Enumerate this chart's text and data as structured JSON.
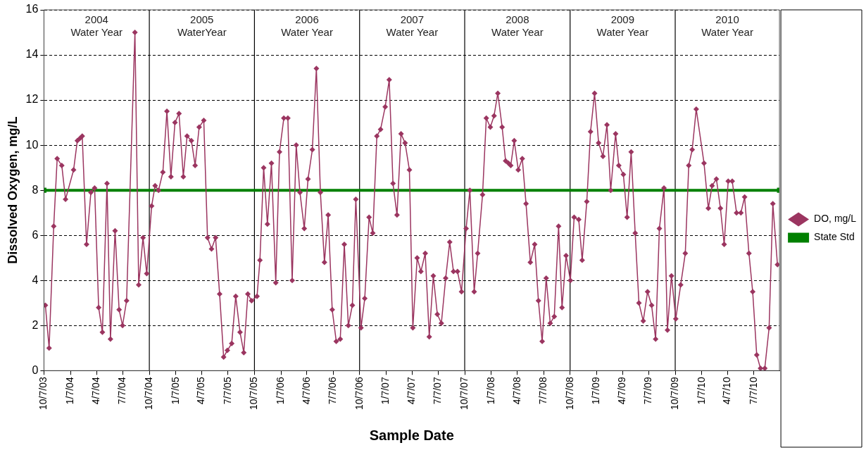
{
  "chart_data": {
    "type": "line",
    "xlabel": "Sample Date",
    "ylabel": "Dissolved Oxygen, mg/L",
    "xlim": [
      "2003-10-07",
      "2010-10-04"
    ],
    "ylim": [
      0,
      16
    ],
    "yticks": [
      0,
      2,
      4,
      6,
      8,
      10,
      12,
      14,
      16
    ],
    "xticks": [
      {
        "value": "2003-10-07",
        "label": "10/7/03"
      },
      {
        "value": "2004-01-07",
        "label": "1/7/04"
      },
      {
        "value": "2004-04-07",
        "label": "4/7/04"
      },
      {
        "value": "2004-07-07",
        "label": "7/7/04"
      },
      {
        "value": "2004-10-07",
        "label": "10/7/04"
      },
      {
        "value": "2005-01-07",
        "label": "1/7/05"
      },
      {
        "value": "2005-04-07",
        "label": "4/7/05"
      },
      {
        "value": "2005-07-07",
        "label": "7/7/05"
      },
      {
        "value": "2005-10-07",
        "label": "10/7/05"
      },
      {
        "value": "2006-01-07",
        "label": "1/7/06"
      },
      {
        "value": "2006-04-07",
        "label": "4/7/06"
      },
      {
        "value": "2006-07-07",
        "label": "7/7/06"
      },
      {
        "value": "2006-10-07",
        "label": "10/7/06"
      },
      {
        "value": "2007-01-07",
        "label": "1/7/07"
      },
      {
        "value": "2007-04-07",
        "label": "4/7/07"
      },
      {
        "value": "2007-07-07",
        "label": "7/7/07"
      },
      {
        "value": "2007-10-07",
        "label": "10/7/07"
      },
      {
        "value": "2008-01-07",
        "label": "1/7/08"
      },
      {
        "value": "2008-04-07",
        "label": "4/7/08"
      },
      {
        "value": "2008-07-07",
        "label": "7/7/08"
      },
      {
        "value": "2008-10-07",
        "label": "10/7/08"
      },
      {
        "value": "2009-01-07",
        "label": "1/7/09"
      },
      {
        "value": "2009-04-07",
        "label": "4/7/09"
      },
      {
        "value": "2009-07-07",
        "label": "7/7/09"
      },
      {
        "value": "2009-10-07",
        "label": "10/7/09"
      },
      {
        "value": "2010-01-07",
        "label": "1/7/10"
      },
      {
        "value": "2010-04-07",
        "label": "4/7/10"
      },
      {
        "value": "2010-07-07",
        "label": "7/7/10"
      }
    ],
    "grid": "y",
    "legend": "right",
    "line_style": "solid",
    "series": [
      {
        "name": "DO, mg/L",
        "color": "#9b3560",
        "marker": "diamond",
        "x": [
          "2003-10-12",
          "2003-10-25",
          "2003-11-10",
          "2003-11-22",
          "2003-12-08",
          "2003-12-21",
          "2004-01-18",
          "2004-01-31",
          "2004-02-09",
          "2004-02-17",
          "2004-03-03",
          "2004-03-18",
          "2004-03-31",
          "2004-04-14",
          "2004-04-27",
          "2004-05-13",
          "2004-05-25",
          "2004-06-10",
          "2004-06-24",
          "2004-07-06",
          "2004-07-20",
          "2004-08-18",
          "2004-08-31",
          "2004-09-15",
          "2004-09-28",
          "2004-10-15",
          "2004-10-27",
          "2004-11-08",
          "2004-11-23",
          "2004-12-07",
          "2004-12-21",
          "2005-01-04",
          "2005-01-18",
          "2005-02-02",
          "2005-02-15",
          "2005-03-02",
          "2005-03-15",
          "2005-03-29",
          "2005-04-14",
          "2005-04-27",
          "2005-05-11",
          "2005-05-25",
          "2005-06-08",
          "2005-06-22",
          "2005-07-05",
          "2005-07-20",
          "2005-08-03",
          "2005-08-18",
          "2005-08-31",
          "2005-09-14",
          "2005-09-27",
          "2005-10-16",
          "2005-10-26",
          "2005-11-08",
          "2005-11-21",
          "2005-12-05",
          "2005-12-20",
          "2006-01-02",
          "2006-01-17",
          "2006-01-31",
          "2006-02-15",
          "2006-03-01",
          "2006-03-14",
          "2006-03-29",
          "2006-04-11",
          "2006-04-26",
          "2006-05-10",
          "2006-05-24",
          "2006-06-07",
          "2006-06-20",
          "2006-07-04",
          "2006-07-18",
          "2006-08-01",
          "2006-08-15",
          "2006-08-29",
          "2006-09-12",
          "2006-09-24",
          "2006-10-12",
          "2006-10-25",
          "2006-11-09",
          "2006-11-22",
          "2006-12-06",
          "2006-12-19",
          "2007-01-04",
          "2007-01-18",
          "2007-01-31",
          "2007-02-14",
          "2007-02-28",
          "2007-03-14",
          "2007-03-29",
          "2007-04-10",
          "2007-04-25",
          "2007-05-08",
          "2007-05-23",
          "2007-06-06",
          "2007-06-20",
          "2007-07-04",
          "2007-07-18",
          "2007-08-02",
          "2007-08-16",
          "2007-08-29",
          "2007-09-12",
          "2007-09-26",
          "2007-10-12",
          "2007-10-25",
          "2007-11-09",
          "2007-11-21",
          "2007-12-08",
          "2007-12-21",
          "2008-01-04",
          "2008-01-17",
          "2008-01-30",
          "2008-02-14",
          "2008-02-26",
          "2008-03-07",
          "2008-03-15",
          "2008-03-27",
          "2008-04-10",
          "2008-04-24",
          "2008-05-07",
          "2008-05-22",
          "2008-06-06",
          "2008-06-19",
          "2008-07-02",
          "2008-07-16",
          "2008-07-30",
          "2008-08-13",
          "2008-08-28",
          "2008-09-09",
          "2008-09-23",
          "2008-10-08",
          "2008-10-21",
          "2008-11-06",
          "2008-11-18",
          "2008-12-04",
          "2008-12-17",
          "2008-12-31",
          "2009-01-14",
          "2009-01-29",
          "2009-02-12",
          "2009-02-25",
          "2009-03-14",
          "2009-03-25",
          "2009-04-10",
          "2009-04-23",
          "2009-05-07",
          "2009-05-21",
          "2009-06-03",
          "2009-06-18",
          "2009-07-03",
          "2009-07-17",
          "2009-07-31",
          "2009-08-13",
          "2009-08-29",
          "2009-09-10",
          "2009-09-24",
          "2009-10-09",
          "2009-10-26",
          "2009-11-11",
          "2009-11-23",
          "2009-12-05",
          "2009-12-19",
          "2010-01-15",
          "2010-01-30",
          "2010-02-12",
          "2010-02-27",
          "2010-03-13",
          "2010-03-26",
          "2010-04-09",
          "2010-04-23",
          "2010-05-08",
          "2010-05-23",
          "2010-06-05",
          "2010-06-20",
          "2010-07-03",
          "2010-07-17",
          "2010-07-30",
          "2010-08-14",
          "2010-08-29",
          "2010-09-11",
          "2010-09-27"
        ],
        "values": [
          2.9,
          1.0,
          6.4,
          9.4,
          9.1,
          7.6,
          8.9,
          10.2,
          10.3,
          10.4,
          5.6,
          7.9,
          8.1,
          2.8,
          1.7,
          8.3,
          1.4,
          6.2,
          2.7,
          2.0,
          3.1,
          15.0,
          3.8,
          5.9,
          4.3,
          7.3,
          8.2,
          8.0,
          8.8,
          11.5,
          8.6,
          11.0,
          11.4,
          8.6,
          10.4,
          10.2,
          9.1,
          10.8,
          11.1,
          5.9,
          5.4,
          5.9,
          3.4,
          0.6,
          0.9,
          1.2,
          3.3,
          1.7,
          0.8,
          3.4,
          3.1,
          3.3,
          4.9,
          9.0,
          6.5,
          9.2,
          3.9,
          9.7,
          11.2,
          11.2,
          4.0,
          10.0,
          7.9,
          6.3,
          8.5,
          9.8,
          13.4,
          7.9,
          4.8,
          6.9,
          2.7,
          1.3,
          1.4,
          5.6,
          2.0,
          2.9,
          7.6,
          1.9,
          3.2,
          6.8,
          6.1,
          10.4,
          10.7,
          11.7,
          12.9,
          8.3,
          6.9,
          10.5,
          10.1,
          8.9,
          1.9,
          5.0,
          4.4,
          5.2,
          1.5,
          4.2,
          2.5,
          2.1,
          4.1,
          5.7,
          4.4,
          4.4,
          3.5,
          6.3,
          8.0,
          3.5,
          5.2,
          7.8,
          11.2,
          10.8,
          11.3,
          12.3,
          10.8,
          9.3,
          9.2,
          9.1,
          10.2,
          8.9,
          9.4,
          7.4,
          4.8,
          5.6,
          3.1,
          1.3,
          4.1,
          2.1,
          2.4,
          6.4,
          2.8,
          5.1,
          4.0,
          6.8,
          6.7,
          4.9,
          7.5,
          10.6,
          12.3,
          10.1,
          9.5,
          10.9,
          8.0,
          10.5,
          9.1,
          8.7,
          6.8,
          9.7,
          6.1,
          3.0,
          2.2,
          3.5,
          2.9,
          1.4,
          6.3,
          8.1,
          1.8,
          4.2,
          2.3,
          3.8,
          5.2,
          9.1,
          9.8,
          11.6,
          9.2,
          7.2,
          8.2,
          8.5,
          7.2,
          5.6,
          8.4,
          8.4,
          7.0,
          7.0,
          7.7,
          5.2,
          3.5,
          0.7,
          0.1,
          0.1,
          1.9,
          7.4,
          4.7
        ]
      },
      {
        "name": "State Std",
        "color": "#008000",
        "marker": "square",
        "x": [
          "2003-10-07",
          "2010-10-04"
        ],
        "values": [
          8,
          8
        ]
      }
    ],
    "ref_lines": [
      {
        "axis": "x",
        "value": "2004-10-07",
        "color": "#000000"
      },
      {
        "axis": "x",
        "value": "2005-10-07",
        "color": "#000000"
      },
      {
        "axis": "x",
        "value": "2006-10-07",
        "color": "#000000"
      },
      {
        "axis": "x",
        "value": "2007-10-07",
        "color": "#000000"
      },
      {
        "axis": "x",
        "value": "2008-10-07",
        "color": "#000000"
      },
      {
        "axis": "x",
        "value": "2009-10-07",
        "color": "#000000"
      }
    ],
    "annotations": [
      "2004\nWater Year",
      "2005\nWaterYear",
      "2006\nWater Year",
      "2007\nWater Year",
      "2008\nWater Year",
      "2009\nWater Year",
      "2010\nWater Year"
    ]
  }
}
